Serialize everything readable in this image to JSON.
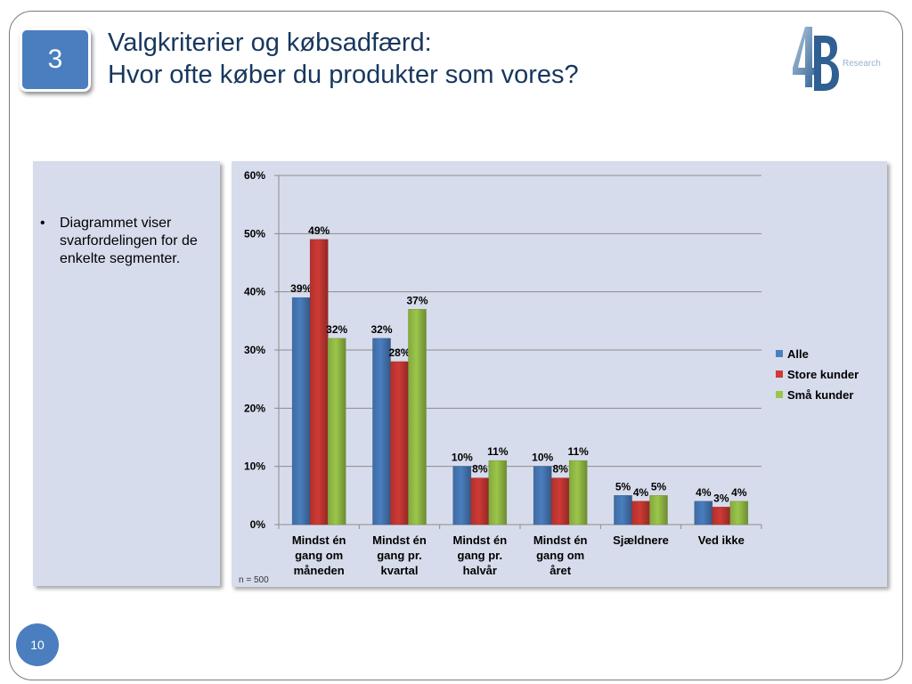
{
  "slide": {
    "section_number": "3",
    "title_line1": "Valgkriterier og købsadfærd:",
    "title_line2": "Hvor ofte køber du produkter som vores?",
    "logo_text": "Research",
    "bullets": [
      "Diagrammet viser svarfordelingen for de enkelte segmenter."
    ],
    "page_number": "10",
    "sample_note": "n = 500"
  },
  "chart_data": {
    "type": "bar",
    "categories": [
      [
        "Mindst én",
        "gang om",
        "måneden"
      ],
      [
        "Mindst én",
        "gang pr.",
        "kvartal"
      ],
      [
        "Mindst én",
        "gang pr.",
        "halvår"
      ],
      [
        "Mindst én",
        "gang om",
        "året"
      ],
      [
        "Sjældnere"
      ],
      [
        "Ved ikke"
      ]
    ],
    "series": [
      {
        "name": "Alle",
        "values": [
          39,
          32,
          10,
          10,
          5,
          4
        ],
        "labels": [
          "39%",
          "32%",
          "10%",
          "10%",
          "5%",
          "4%"
        ],
        "color": "#4a7ebf"
      },
      {
        "name": "Store kunder",
        "values": [
          49,
          28,
          8,
          8,
          4,
          3
        ],
        "labels": [
          "49%",
          "28%",
          "8%",
          "8%",
          "4%",
          "3%"
        ],
        "color": "#cf3a35"
      },
      {
        "name": "Små kunder",
        "values": [
          32,
          37,
          11,
          11,
          5,
          4
        ],
        "labels": [
          "32%",
          "37%",
          "11%",
          "11%",
          "5%",
          "4%"
        ],
        "color": "#9bc64a"
      }
    ],
    "yticks": [
      "0%",
      "10%",
      "20%",
      "30%",
      "40%",
      "50%",
      "60%"
    ],
    "ylim": [
      0,
      60
    ],
    "grid": true,
    "legend_position": "right"
  }
}
